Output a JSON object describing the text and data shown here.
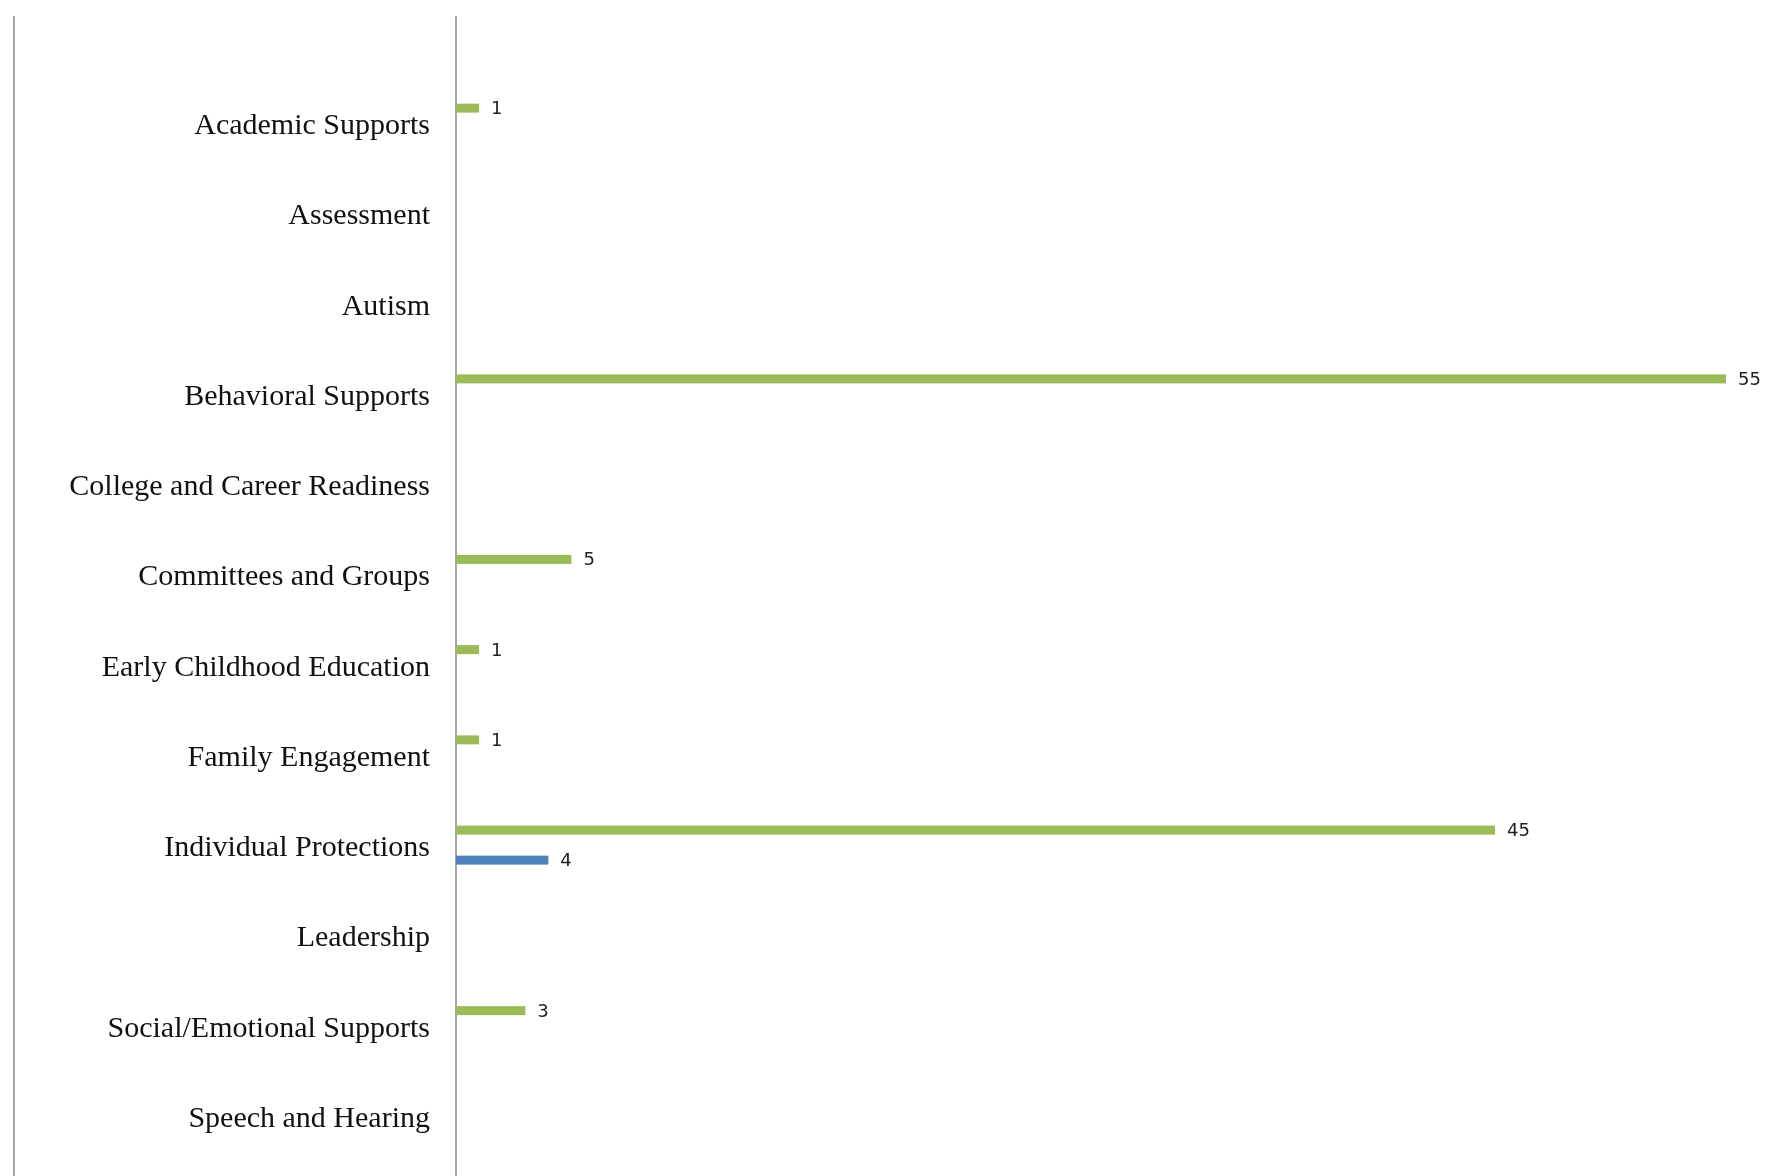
{
  "chart_data": {
    "type": "bar",
    "orientation": "horizontal",
    "data_labels": true,
    "categories": [
      "Academic Supports",
      "Assessment",
      "Autism",
      "Behavioral Supports",
      "College and Career Readiness",
      "Committees and Groups",
      "Early Childhood Education",
      "Family Engagement",
      "Individual Protections",
      "Leadership",
      "Social/Emotional Supports",
      "Speech and Hearing"
    ],
    "series": [
      {
        "color": "#9bbb59",
        "values": [
          1,
          null,
          null,
          55,
          null,
          5,
          1,
          1,
          45,
          null,
          3,
          null
        ]
      },
      {
        "color": "#4f81bd",
        "values": [
          null,
          null,
          null,
          null,
          null,
          null,
          null,
          null,
          4,
          null,
          null,
          null
        ]
      }
    ]
  }
}
